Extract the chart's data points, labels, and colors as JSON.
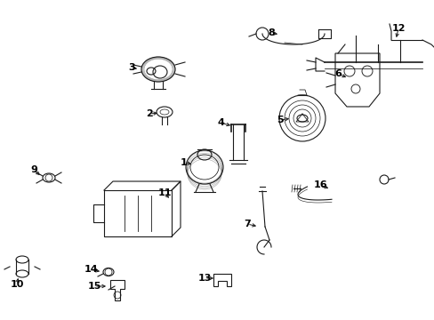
{
  "background_color": "#ffffff",
  "figsize": [
    4.89,
    3.6
  ],
  "dpi": 100,
  "image_data": ""
}
